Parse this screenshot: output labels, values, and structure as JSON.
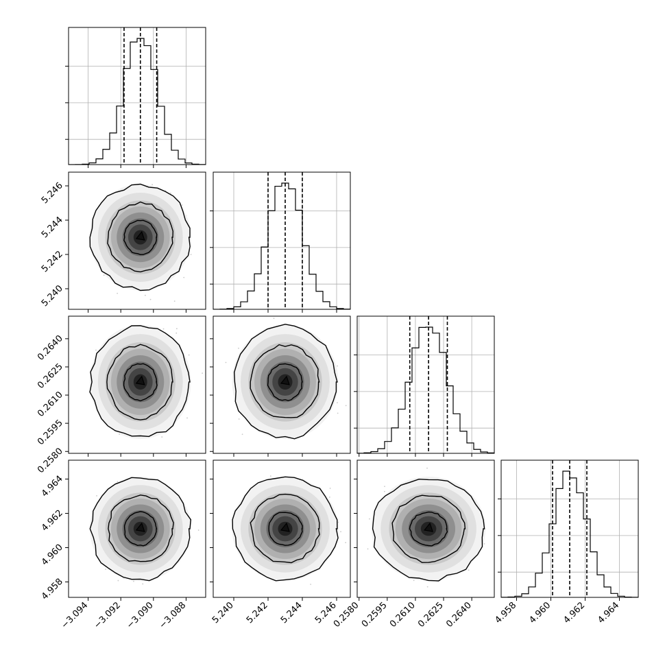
{
  "chart_data": {
    "type": "corner",
    "title": "",
    "parameters": [
      {
        "range": [
          -3.0952,
          -3.0868
        ],
        "ticks": [
          -3.094,
          -3.092,
          -3.09,
          -3.088
        ],
        "tick_labels": [
          "−3.094",
          "−3.092",
          "−3.090",
          "−3.088"
        ],
        "quantiles": [
          -3.0918,
          -3.0908,
          -3.0898
        ],
        "mean": -3.0908,
        "sd": 0.001
      },
      {
        "range": [
          5.2388,
          5.2468
        ],
        "ticks": [
          5.24,
          5.242,
          5.244,
          5.246
        ],
        "tick_labels": [
          "5.240",
          "5.242",
          "5.244",
          "5.246"
        ],
        "quantiles": [
          5.242,
          5.243,
          5.244
        ],
        "mean": 5.243,
        "sd": 0.001
      },
      {
        "range": [
          0.2579,
          0.2652
        ],
        "ticks": [
          0.258,
          0.2595,
          0.261,
          0.2625,
          0.264
        ],
        "tick_labels": [
          "0.2580",
          "0.2595",
          "0.2610",
          "0.2625",
          "0.2640"
        ],
        "quantiles": [
          0.2607,
          0.2617,
          0.2627
        ],
        "mean": 0.2617,
        "sd": 0.00098
      },
      {
        "range": [
          4.9571,
          4.9651
        ],
        "ticks": [
          4.958,
          4.96,
          4.962,
          4.964
        ],
        "tick_labels": [
          "4.958",
          "4.960",
          "4.962",
          "4.964"
        ],
        "quantiles": [
          4.9601,
          4.9611,
          4.9621
        ],
        "mean": 4.9611,
        "sd": 0.00098
      }
    ],
    "grid": true,
    "legend": "none"
  }
}
